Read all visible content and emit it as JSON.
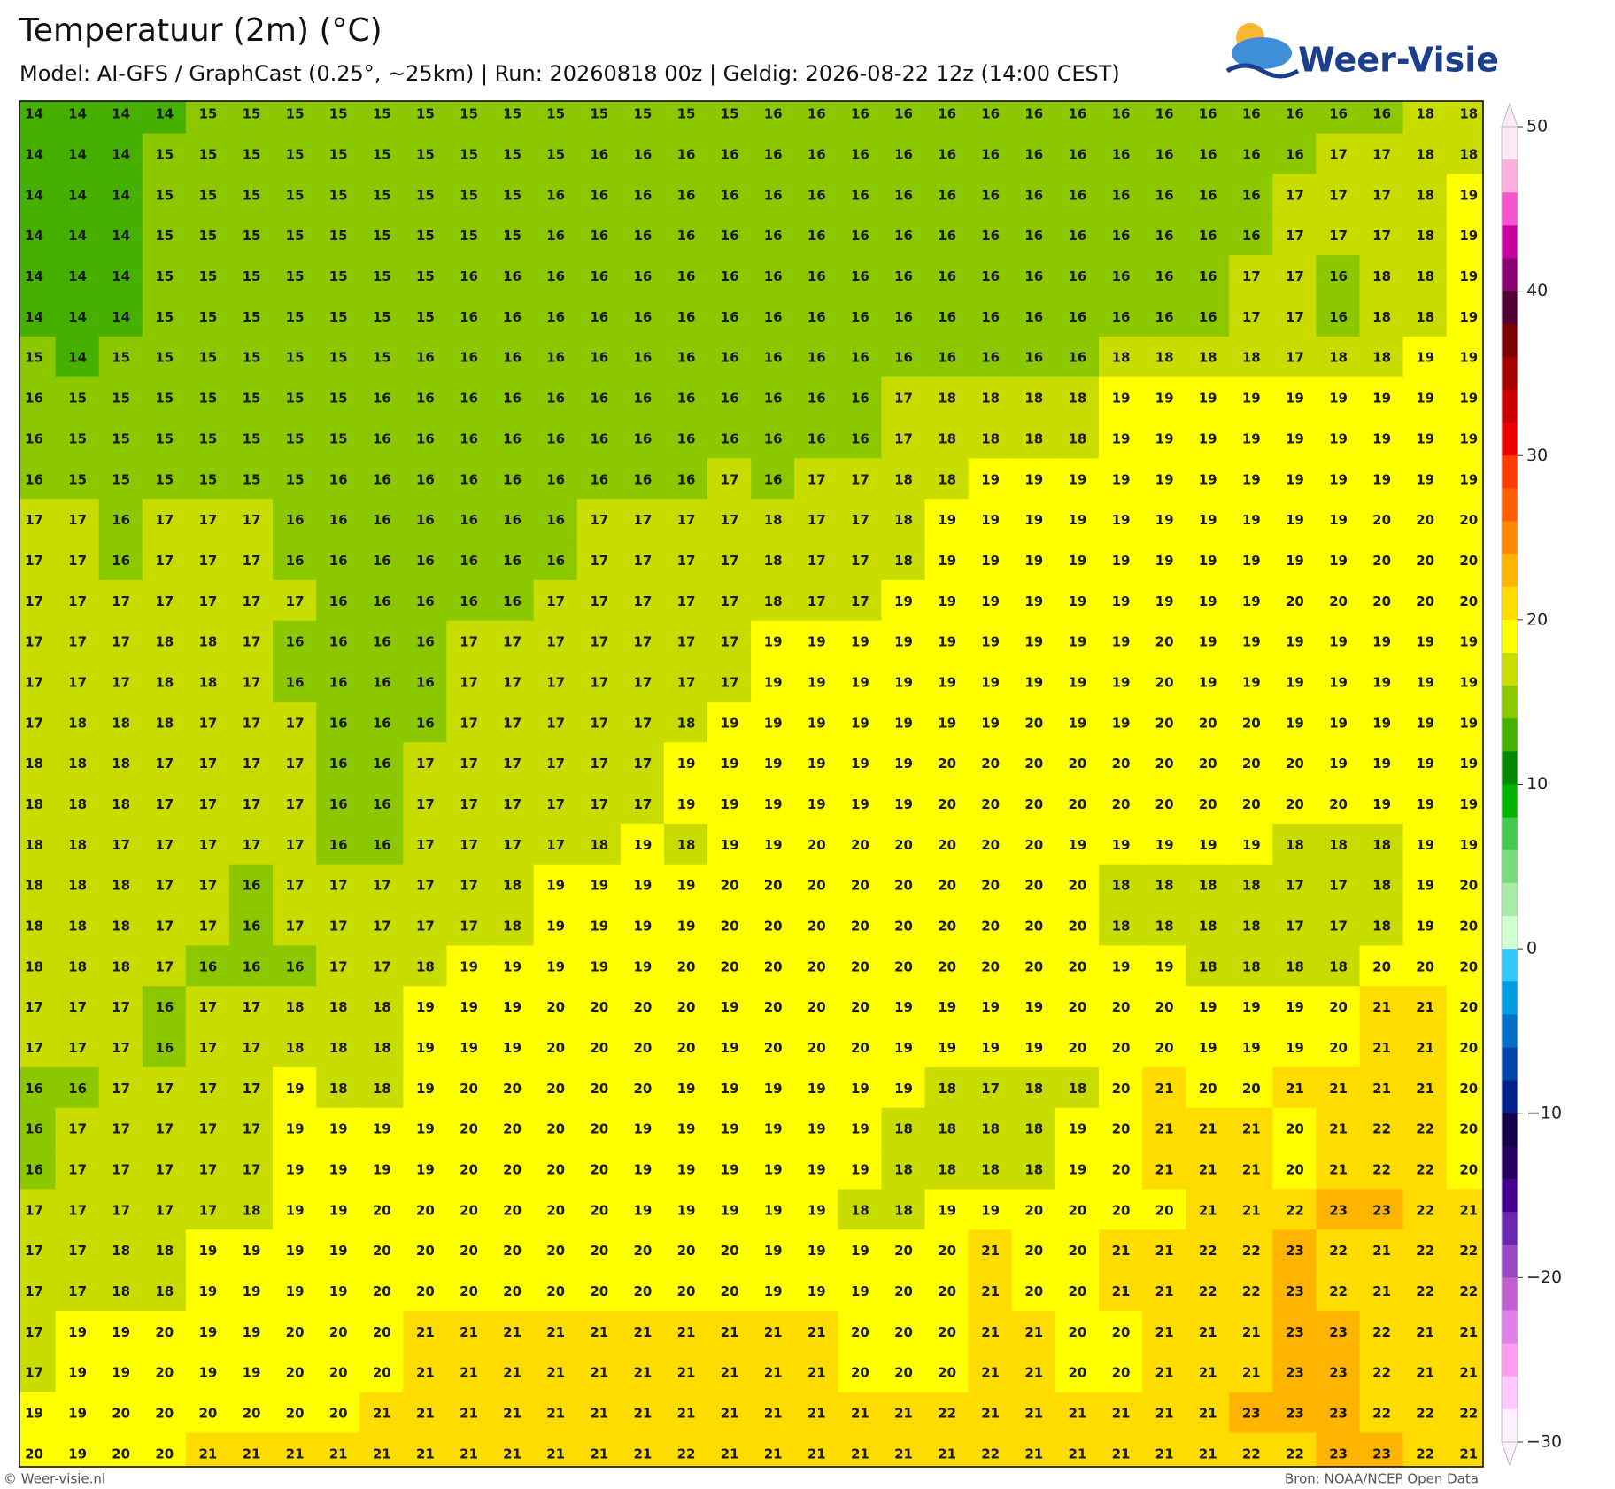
{
  "header": {
    "title": "Temperatuur (2m) (°C)",
    "subtitle": "Model: AI-GFS / GraphCast (0.25°, ~25km)  |  Run: 20260818 00z  |  Geldig: 2026-08-22 12z (14:00 CEST)"
  },
  "logo": "Weer-Visie",
  "grid": {
    "values": [
      [
        14,
        14,
        14,
        14,
        15,
        15,
        15,
        15,
        15,
        15,
        15,
        15,
        15,
        15,
        15,
        15,
        15,
        16,
        16,
        16,
        16,
        16,
        16,
        16,
        16,
        16,
        16,
        16,
        16,
        16,
        16,
        16,
        18,
        18
      ],
      [
        14,
        14,
        14,
        15,
        15,
        15,
        15,
        15,
        15,
        15,
        15,
        15,
        15,
        16,
        16,
        16,
        16,
        16,
        16,
        16,
        16,
        16,
        16,
        16,
        16,
        16,
        16,
        16,
        16,
        16,
        17,
        17,
        18,
        18
      ],
      [
        14,
        14,
        14,
        15,
        15,
        15,
        15,
        15,
        15,
        15,
        15,
        15,
        16,
        16,
        16,
        16,
        16,
        16,
        16,
        16,
        16,
        16,
        16,
        16,
        16,
        16,
        16,
        16,
        16,
        17,
        17,
        17,
        18,
        19
      ],
      [
        14,
        14,
        14,
        15,
        15,
        15,
        15,
        15,
        15,
        15,
        15,
        15,
        16,
        16,
        16,
        16,
        16,
        16,
        16,
        16,
        16,
        16,
        16,
        16,
        16,
        16,
        16,
        16,
        16,
        17,
        17,
        17,
        18,
        19
      ],
      [
        14,
        14,
        14,
        15,
        15,
        15,
        15,
        15,
        15,
        15,
        16,
        16,
        16,
        16,
        16,
        16,
        16,
        16,
        16,
        16,
        16,
        16,
        16,
        16,
        16,
        16,
        16,
        16,
        17,
        17,
        16,
        18,
        18,
        19
      ],
      [
        14,
        14,
        14,
        15,
        15,
        15,
        15,
        15,
        15,
        15,
        16,
        16,
        16,
        16,
        16,
        16,
        16,
        16,
        16,
        16,
        16,
        16,
        16,
        16,
        16,
        16,
        16,
        16,
        17,
        17,
        16,
        18,
        18,
        19
      ],
      [
        15,
        14,
        15,
        15,
        15,
        15,
        15,
        15,
        15,
        16,
        16,
        16,
        16,
        16,
        16,
        16,
        16,
        16,
        16,
        16,
        16,
        16,
        16,
        16,
        16,
        18,
        18,
        18,
        18,
        17,
        18,
        18,
        19,
        19
      ],
      [
        16,
        15,
        15,
        15,
        15,
        15,
        15,
        15,
        16,
        16,
        16,
        16,
        16,
        16,
        16,
        16,
        16,
        16,
        16,
        16,
        17,
        18,
        18,
        18,
        18,
        19,
        19,
        19,
        19,
        19,
        19,
        19,
        19,
        19
      ],
      [
        16,
        15,
        15,
        15,
        15,
        15,
        15,
        15,
        16,
        16,
        16,
        16,
        16,
        16,
        16,
        16,
        16,
        16,
        16,
        16,
        17,
        18,
        18,
        18,
        18,
        19,
        19,
        19,
        19,
        19,
        19,
        19,
        19,
        19
      ],
      [
        16,
        15,
        15,
        15,
        15,
        15,
        15,
        16,
        16,
        16,
        16,
        16,
        16,
        16,
        16,
        16,
        17,
        16,
        17,
        17,
        18,
        18,
        19,
        19,
        19,
        19,
        19,
        19,
        19,
        19,
        19,
        19,
        19,
        19
      ],
      [
        17,
        17,
        16,
        17,
        17,
        17,
        16,
        16,
        16,
        16,
        16,
        16,
        16,
        17,
        17,
        17,
        17,
        18,
        17,
        17,
        18,
        19,
        19,
        19,
        19,
        19,
        19,
        19,
        19,
        19,
        19,
        20,
        20,
        20
      ],
      [
        17,
        17,
        16,
        17,
        17,
        17,
        16,
        16,
        16,
        16,
        16,
        16,
        16,
        17,
        17,
        17,
        17,
        18,
        17,
        17,
        18,
        19,
        19,
        19,
        19,
        19,
        19,
        19,
        19,
        19,
        19,
        20,
        20,
        20
      ],
      [
        17,
        17,
        17,
        17,
        17,
        17,
        17,
        16,
        16,
        16,
        16,
        16,
        17,
        17,
        17,
        17,
        17,
        18,
        17,
        17,
        19,
        19,
        19,
        19,
        19,
        19,
        19,
        19,
        19,
        20,
        20,
        20,
        20,
        20
      ],
      [
        17,
        17,
        17,
        18,
        18,
        17,
        16,
        16,
        16,
        16,
        17,
        17,
        17,
        17,
        17,
        17,
        17,
        19,
        19,
        19,
        19,
        19,
        19,
        19,
        19,
        19,
        20,
        19,
        19,
        19,
        19,
        19,
        19,
        19
      ],
      [
        17,
        17,
        17,
        18,
        18,
        17,
        16,
        16,
        16,
        16,
        17,
        17,
        17,
        17,
        17,
        17,
        17,
        19,
        19,
        19,
        19,
        19,
        19,
        19,
        19,
        19,
        20,
        19,
        19,
        19,
        19,
        19,
        19,
        19
      ],
      [
        17,
        18,
        18,
        18,
        17,
        17,
        17,
        16,
        16,
        16,
        17,
        17,
        17,
        17,
        17,
        18,
        19,
        19,
        19,
        19,
        19,
        19,
        19,
        20,
        19,
        19,
        20,
        20,
        20,
        19,
        19,
        19,
        19,
        19
      ],
      [
        18,
        18,
        18,
        17,
        17,
        17,
        17,
        16,
        16,
        17,
        17,
        17,
        17,
        17,
        17,
        19,
        19,
        19,
        19,
        19,
        19,
        20,
        20,
        20,
        20,
        20,
        20,
        20,
        20,
        20,
        19,
        19,
        19,
        19
      ],
      [
        18,
        18,
        18,
        17,
        17,
        17,
        17,
        16,
        16,
        17,
        17,
        17,
        17,
        17,
        17,
        19,
        19,
        19,
        19,
        19,
        19,
        20,
        20,
        20,
        20,
        20,
        20,
        20,
        20,
        20,
        20,
        19,
        19,
        19
      ],
      [
        18,
        18,
        17,
        17,
        17,
        17,
        17,
        16,
        16,
        17,
        17,
        17,
        17,
        18,
        19,
        18,
        19,
        19,
        20,
        20,
        20,
        20,
        20,
        20,
        19,
        19,
        19,
        19,
        19,
        18,
        18,
        18,
        19,
        19
      ],
      [
        18,
        18,
        18,
        17,
        17,
        16,
        17,
        17,
        17,
        17,
        17,
        18,
        19,
        19,
        19,
        19,
        20,
        20,
        20,
        20,
        20,
        20,
        20,
        20,
        20,
        18,
        18,
        18,
        18,
        17,
        17,
        18,
        19,
        20
      ],
      [
        18,
        18,
        18,
        17,
        17,
        16,
        17,
        17,
        17,
        17,
        17,
        18,
        19,
        19,
        19,
        19,
        20,
        20,
        20,
        20,
        20,
        20,
        20,
        20,
        20,
        18,
        18,
        18,
        18,
        17,
        17,
        18,
        19,
        20
      ],
      [
        18,
        18,
        18,
        17,
        16,
        16,
        16,
        17,
        17,
        18,
        19,
        19,
        19,
        19,
        19,
        20,
        20,
        20,
        20,
        20,
        20,
        20,
        20,
        20,
        20,
        19,
        19,
        18,
        18,
        18,
        18,
        20,
        20,
        20
      ],
      [
        17,
        17,
        17,
        16,
        17,
        17,
        18,
        18,
        18,
        19,
        19,
        19,
        20,
        20,
        20,
        20,
        19,
        20,
        20,
        20,
        19,
        19,
        19,
        19,
        20,
        20,
        20,
        19,
        19,
        19,
        20,
        21,
        21,
        20
      ],
      [
        17,
        17,
        17,
        16,
        17,
        17,
        18,
        18,
        18,
        19,
        19,
        19,
        20,
        20,
        20,
        20,
        19,
        20,
        20,
        20,
        19,
        19,
        19,
        19,
        20,
        20,
        20,
        19,
        19,
        19,
        20,
        21,
        21,
        20
      ],
      [
        16,
        16,
        17,
        17,
        17,
        17,
        19,
        18,
        18,
        19,
        20,
        20,
        20,
        20,
        20,
        19,
        19,
        19,
        19,
        19,
        19,
        18,
        17,
        18,
        18,
        20,
        21,
        20,
        20,
        21,
        21,
        21,
        21,
        20
      ],
      [
        16,
        17,
        17,
        17,
        17,
        17,
        19,
        19,
        19,
        19,
        20,
        20,
        20,
        20,
        19,
        19,
        19,
        19,
        19,
        19,
        18,
        18,
        18,
        18,
        19,
        20,
        21,
        21,
        21,
        20,
        21,
        22,
        22,
        20
      ],
      [
        16,
        17,
        17,
        17,
        17,
        17,
        19,
        19,
        19,
        19,
        20,
        20,
        20,
        20,
        19,
        19,
        19,
        19,
        19,
        19,
        18,
        18,
        18,
        18,
        19,
        20,
        21,
        21,
        21,
        20,
        21,
        22,
        22,
        20
      ],
      [
        17,
        17,
        17,
        17,
        17,
        18,
        19,
        19,
        20,
        20,
        20,
        20,
        20,
        20,
        19,
        19,
        19,
        19,
        19,
        18,
        18,
        19,
        19,
        20,
        20,
        20,
        20,
        21,
        21,
        22,
        23,
        23,
        22,
        21
      ],
      [
        17,
        17,
        18,
        18,
        19,
        19,
        19,
        19,
        20,
        20,
        20,
        20,
        20,
        20,
        20,
        20,
        20,
        19,
        19,
        19,
        20,
        20,
        21,
        20,
        20,
        21,
        21,
        22,
        22,
        23,
        22,
        21,
        22,
        22
      ],
      [
        17,
        17,
        18,
        18,
        19,
        19,
        19,
        19,
        20,
        20,
        20,
        20,
        20,
        20,
        20,
        20,
        20,
        19,
        19,
        19,
        20,
        20,
        21,
        20,
        20,
        21,
        21,
        22,
        22,
        23,
        22,
        21,
        22,
        22
      ],
      [
        17,
        19,
        19,
        20,
        19,
        19,
        20,
        20,
        20,
        21,
        21,
        21,
        21,
        21,
        21,
        21,
        21,
        21,
        21,
        20,
        20,
        20,
        21,
        21,
        20,
        20,
        21,
        21,
        21,
        23,
        23,
        22,
        21,
        21
      ],
      [
        17,
        19,
        19,
        20,
        19,
        19,
        20,
        20,
        20,
        21,
        21,
        21,
        21,
        21,
        21,
        21,
        21,
        21,
        21,
        20,
        20,
        20,
        21,
        21,
        20,
        20,
        21,
        21,
        21,
        23,
        23,
        22,
        21,
        21
      ],
      [
        19,
        19,
        20,
        20,
        20,
        20,
        20,
        20,
        21,
        21,
        21,
        21,
        21,
        21,
        21,
        21,
        21,
        21,
        21,
        21,
        21,
        22,
        21,
        21,
        21,
        21,
        21,
        21,
        23,
        23,
        23,
        22,
        22,
        22
      ],
      [
        20,
        19,
        20,
        20,
        21,
        21,
        21,
        21,
        21,
        21,
        21,
        21,
        21,
        21,
        21,
        22,
        21,
        21,
        21,
        21,
        21,
        21,
        22,
        21,
        21,
        21,
        21,
        21,
        22,
        22,
        23,
        23,
        22,
        21
      ]
    ]
  },
  "colorbar": {
    "lim": [
      -30,
      50
    ],
    "step": 2,
    "ticks": [
      50,
      40,
      30,
      20,
      10,
      0,
      {
        "value": -10,
        "label": "−10"
      },
      {
        "value": -20,
        "label": "−20"
      },
      {
        "value": -30,
        "label": "−30"
      }
    ],
    "colors": [
      "#fde8f8",
      "#fbb0dd",
      "#f654cf",
      "#c9009f",
      "#8b0070",
      "#520038",
      "#7d0000",
      "#a50000",
      "#cc0000",
      "#ee0000",
      "#ff3c00",
      "#ff5e00",
      "#ff8a00",
      "#ffb400",
      "#ffdc00",
      "#ffff00",
      "#c8dc00",
      "#8cc800",
      "#45b000",
      "#008a00",
      "#00b400",
      "#44c850",
      "#78dc78",
      "#a8eca8",
      "#d0ffd0",
      "#30c8ff",
      "#009ee0",
      "#0070c8",
      "#0046aa",
      "#00208c",
      "#14004a",
      "#260060",
      "#440090",
      "#6a28b0",
      "#9a48c0",
      "#c060d0",
      "#e080e8",
      "#ff9cf2",
      "#ffc8ff",
      "#fff0ff"
    ]
  },
  "footer": {
    "left": "© Weer-visie.nl",
    "right": "Bron: NOAA/NCEP Open Data"
  }
}
